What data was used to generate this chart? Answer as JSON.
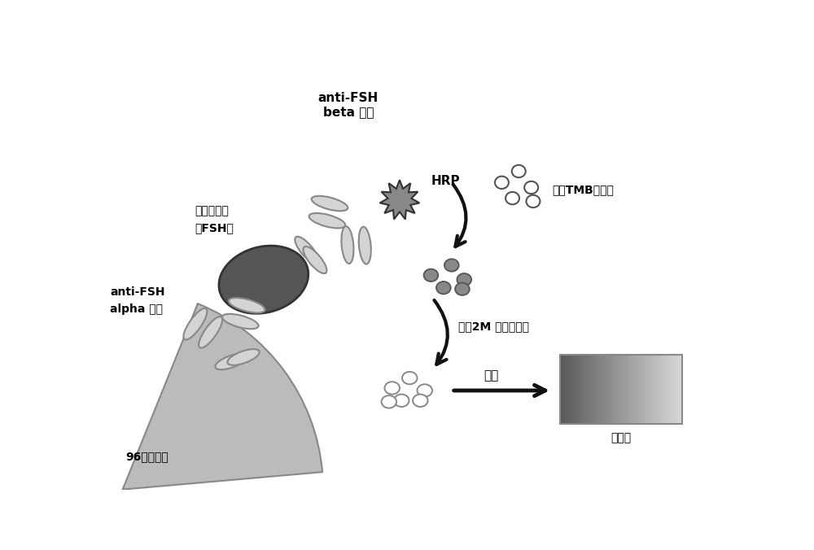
{
  "bg_color": "#ffffff",
  "ab_color": "#d4d4d4",
  "ab_edge": "#888888",
  "ab_lw": 1.5,
  "fsh_color": "#555555",
  "fsh_edge": "#333333",
  "hrp_color": "#888888",
  "hrp_edge": "#333333",
  "plate_color": "#bbbbbb",
  "plate_edge": "#888888",
  "circle_empty_fc": "#ffffff",
  "circle_empty_ec": "#555555",
  "circle_grey_fc": "#888888",
  "circle_grey_ec": "#555555",
  "arrow_color": "#111111",
  "text_color": "#000000",
  "label_antiFSH_beta": "anti-FSH\nbeta 抗体",
  "label_HRP": "HRP",
  "label_FSH_line1": "促卵泡激素",
  "label_FSH_line2": "（FSH）",
  "label_antiFSH_alpha_line1": "anti-FSH",
  "label_antiFSH_alpha_line2": "alpha 抗体",
  "label_96well": "96孔酶标板",
  "label_TMB": "添加TMB显色液",
  "label_H2SO4": "添加2M 硫酸终止液",
  "label_detect": "检测",
  "label_reader": "酶标仳"
}
